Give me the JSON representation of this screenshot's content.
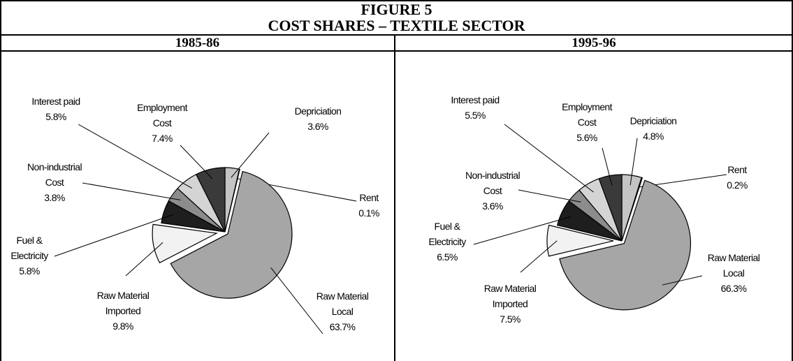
{
  "figure": {
    "label": "FIGURE 5",
    "title": "COST SHARES – TEXTILE SECTOR"
  },
  "chart_data": [
    {
      "type": "pie",
      "title": "1985-86",
      "categories": [
        "Depriciation",
        "Rent",
        "Raw Material\nLocal",
        "Raw Material\nImported",
        "Fuel &\nElectricity",
        "Non-industrial\nCost",
        "Interest paid",
        "Employment\nCost"
      ],
      "values": [
        3.6,
        0.1,
        63.7,
        9.8,
        5.8,
        3.8,
        5.8,
        7.4
      ],
      "value_labels": [
        "3.6%",
        "0.1%",
        "63.7%",
        "9.8%",
        "5.8%",
        "3.8%",
        "5.8%",
        "7.4%"
      ],
      "colors": [
        "#c4c4c4",
        "#ffffff",
        "#a6a6a6",
        "#f2f2f2",
        "#1e1e1e",
        "#8c8c8c",
        "#d4d4d4",
        "#3a3a3a"
      ]
    },
    {
      "type": "pie",
      "title": "1995-96",
      "categories": [
        "Depriciation",
        "Rent",
        "Raw Material\nLocal",
        "Raw Material\nImported",
        "Fuel &\nElectricity",
        "Non-industrial\nCost",
        "Interest paid",
        "Employment\nCost"
      ],
      "values": [
        4.8,
        0.2,
        66.3,
        7.5,
        6.5,
        3.6,
        5.5,
        5.6
      ],
      "value_labels": [
        "4.8%",
        "0.2%",
        "66.3%",
        "7.5%",
        "6.5%",
        "3.6%",
        "5.5%",
        "5.6%"
      ],
      "colors": [
        "#c4c4c4",
        "#ffffff",
        "#a6a6a6",
        "#f2f2f2",
        "#1e1e1e",
        "#8c8c8c",
        "#d4d4d4",
        "#3a3a3a"
      ]
    }
  ]
}
